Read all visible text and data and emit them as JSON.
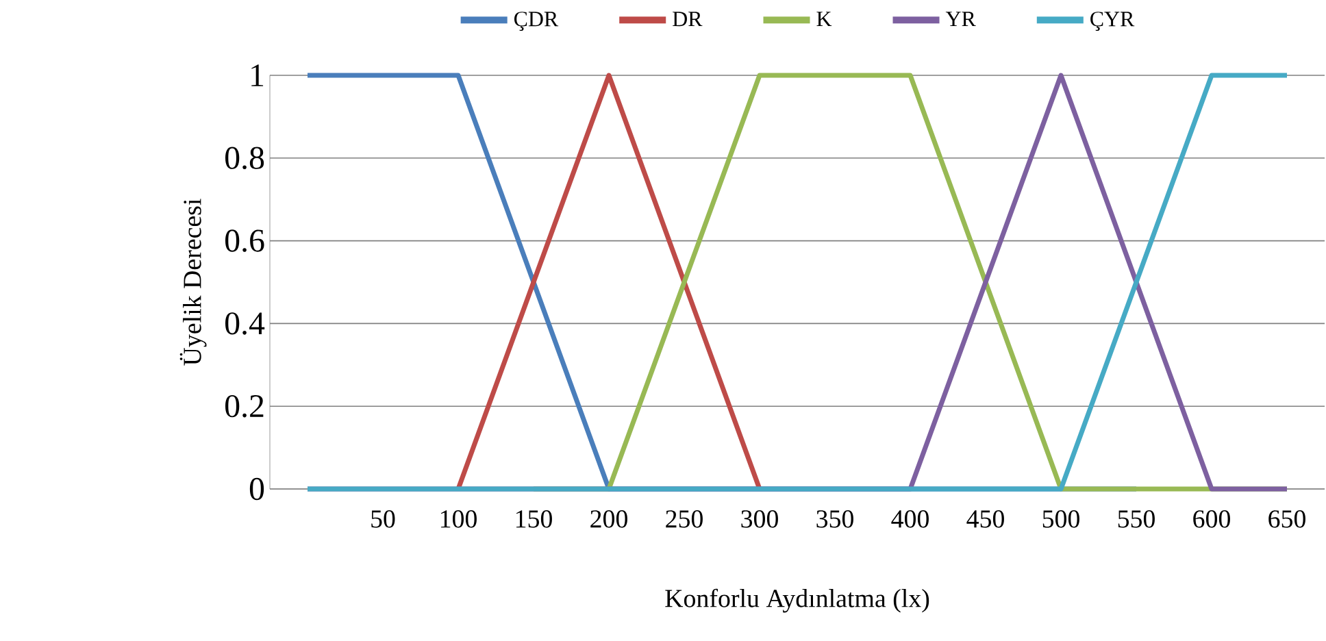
{
  "chart_data": {
    "type": "line",
    "xlabel": "Konforlu Aydınlatma (lx)",
    "ylabel": "Üyelik Derecesi",
    "categories": [
      null,
      "50",
      "100",
      "150",
      "200",
      "250",
      "300",
      "350",
      "400",
      "450",
      "500",
      "550",
      "600",
      "650"
    ],
    "series": [
      {
        "name": "ÇDR",
        "color": "#4a7ebb",
        "values": [
          1,
          1,
          1,
          0.5,
          0,
          0,
          0,
          0,
          0,
          0,
          0,
          0,
          null,
          null
        ]
      },
      {
        "name": "DR",
        "color": "#be4b48",
        "values": [
          null,
          null,
          0,
          0.5,
          1,
          0.5,
          0,
          null,
          null,
          null,
          null,
          null,
          null,
          null
        ]
      },
      {
        "name": "K",
        "color": "#98b954",
        "values": [
          null,
          null,
          null,
          0,
          0,
          0.5,
          1,
          1,
          1,
          0.5,
          0,
          0,
          0,
          0
        ]
      },
      {
        "name": "YR",
        "color": "#7d60a0",
        "values": [
          0,
          0,
          0,
          0,
          0,
          0,
          0,
          0,
          0,
          0.5,
          1,
          0.5,
          0,
          0
        ]
      },
      {
        "name": "ÇYR",
        "color": "#46aac5",
        "values": [
          0,
          0,
          0,
          0,
          0,
          0,
          0,
          0,
          0,
          0,
          0,
          0.5,
          1,
          1
        ]
      }
    ],
    "ylim": [
      0,
      1
    ],
    "yticks": [
      0,
      0.2,
      0.4,
      0.6,
      0.8,
      1
    ],
    "grid": "y",
    "legend": "top"
  }
}
